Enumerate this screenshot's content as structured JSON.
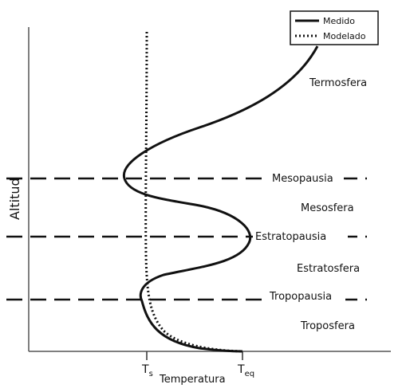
{
  "axes": {
    "y_label": "Altitud",
    "x_label": "Temperatura",
    "ticks": [
      {
        "main": "T",
        "sub": "s"
      },
      {
        "main": "T",
        "sub": "eq"
      }
    ]
  },
  "legend": {
    "measured": "Medido",
    "modeled": "Modelado"
  },
  "layers": {
    "termosfera": "Termosfera",
    "mesopausia": "Mesopausia",
    "mesosfera": "Mesosfera",
    "estratopausia": "Estratopausia",
    "estratosfera": "Estratosfera",
    "tropopausia": "Tropopausia",
    "troposfera": "Troposfera"
  }
}
